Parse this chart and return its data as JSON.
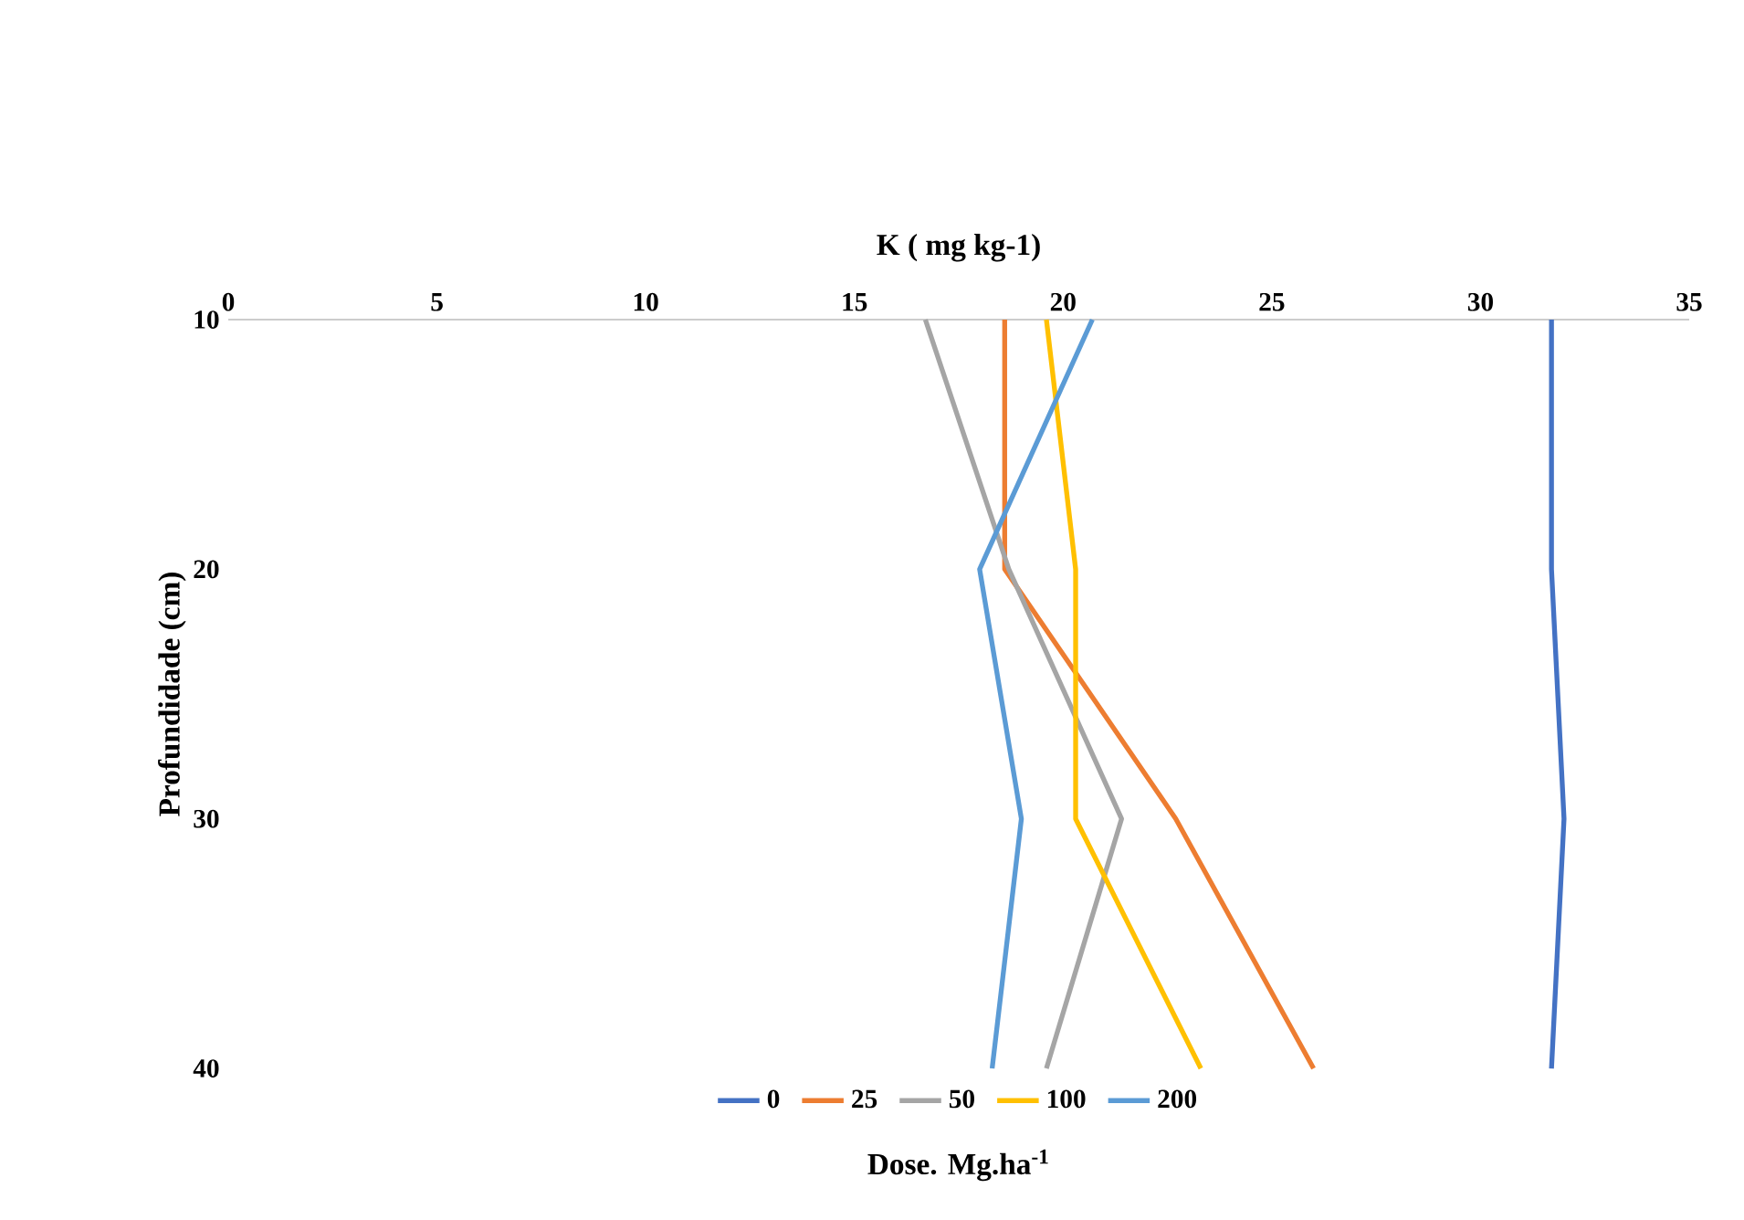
{
  "chart_data": {
    "type": "line",
    "orientation": "horizontal",
    "xlabel": "K ( mg kg-1)",
    "ylabel": "Profundidade (cm)",
    "legend_title": "Dose. Mg.ha$^{-1}$",
    "categories": [
      "10",
      "20",
      "30",
      "40"
    ],
    "series": [
      {
        "name": "0",
        "color": "#4472c4",
        "values": [
          31.7,
          31.7,
          32.0,
          31.7
        ]
      },
      {
        "name": "25",
        "color": "#ed7d31",
        "values": [
          18.6,
          18.6,
          22.7,
          26.0
        ]
      },
      {
        "name": "50",
        "color": "#a5a5a5",
        "values": [
          16.7,
          18.7,
          21.4,
          19.6
        ]
      },
      {
        "name": "100",
        "color": "#ffc000",
        "values": [
          19.6,
          20.3,
          20.3,
          23.3
        ]
      },
      {
        "name": "200",
        "color": "#5b9bd5",
        "values": [
          20.7,
          18.0,
          19.0,
          18.3
        ]
      }
    ],
    "xlim": [
      0,
      35
    ],
    "xticks": [
      0,
      5,
      10,
      15,
      20,
      25,
      30,
      35
    ],
    "grid": false,
    "legend": "bottom",
    "marker": "none",
    "line_style": "solid"
  }
}
